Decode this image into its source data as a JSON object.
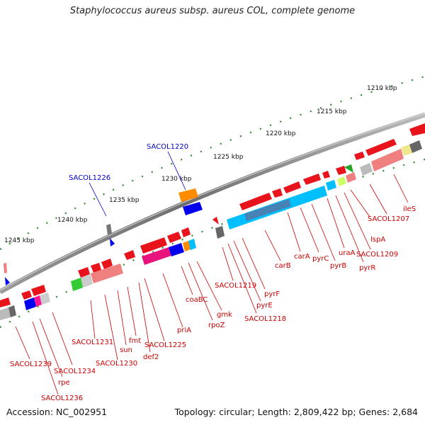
{
  "title": "Staphylococcus aureus subsp. aureus COL, complete genome",
  "footer": {
    "accession": "Accession: NC_002951",
    "topology": "Topology: circular; Length: 2,809,422 bp; Genes: 2,684"
  },
  "colors": {
    "backbone": "#7a7a7a",
    "feature_red": "#e8141c",
    "label_red": "#cc0000",
    "label_blue": "#0000cc",
    "tick_green": "#2b8a2b"
  },
  "scale_labels": [
    "1210 kbp",
    "1215 kbp",
    "1220 kbp",
    "1225 kbp",
    "1230 kbp",
    "1235 kbp",
    "1240 kbp",
    "1245 kbp"
  ],
  "blue_labels": [
    "SACOL1220",
    "SACOL1226"
  ],
  "red_labels": [
    "ileS",
    "SACOL1207",
    "lspA",
    "SACOL1209",
    "pyrR",
    "uraA",
    "pyrB",
    "pyrC",
    "carA",
    "carB",
    "pyrF",
    "pyrE",
    "SACOL1218",
    "SACOL1219",
    "gmk",
    "rpoZ",
    "coaBC",
    "priA",
    "SACOL1225",
    "def2",
    "fmt",
    "sun",
    "SACOL1230",
    "SACOL1231",
    "SACOL1234",
    "rpe",
    "SACOL1236",
    "SACOL1239"
  ]
}
